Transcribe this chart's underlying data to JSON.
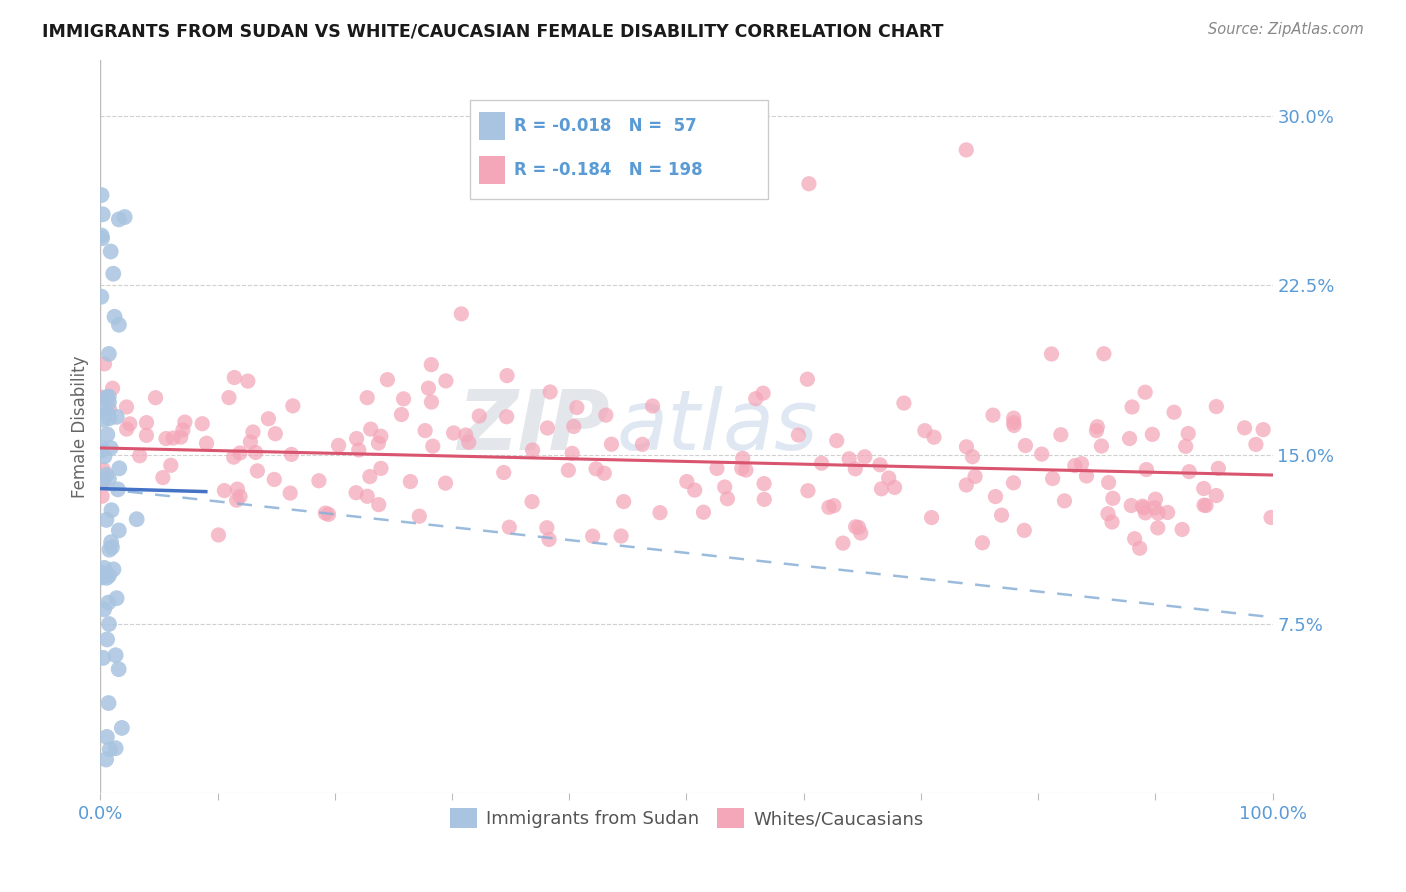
{
  "title": "IMMIGRANTS FROM SUDAN VS WHITE/CAUCASIAN FEMALE DISABILITY CORRELATION CHART",
  "source": "Source: ZipAtlas.com",
  "ylabel": "Female Disability",
  "xlim": [
    0,
    1.0
  ],
  "ylim": [
    0,
    0.325
  ],
  "yticks": [
    0.075,
    0.15,
    0.225,
    0.3
  ],
  "ytick_labels": [
    "7.5%",
    "15.0%",
    "22.5%",
    "30.0%"
  ],
  "xticks": [
    0.0,
    0.1,
    0.2,
    0.3,
    0.4,
    0.5,
    0.6,
    0.7,
    0.8,
    0.9,
    1.0
  ],
  "color_sudan": "#a8c4e0",
  "color_white": "#f4a7b9",
  "color_sudan_line": "#4472c4",
  "color_white_line": "#d9546e",
  "color_dashed": "#8ab0d8",
  "watermark_zip": "ZIP",
  "watermark_atlas": "atlas",
  "background_color": "#ffffff",
  "grid_color": "#d0d0d0",
  "title_color": "#1a1a1a",
  "axis_label_color": "#5b9bd5",
  "white_intercept": 0.153,
  "white_slope": -0.012,
  "sudan_solid_intercept": 0.135,
  "sudan_solid_slope": -0.015,
  "dashed_intercept": 0.135,
  "dashed_slope": -0.057
}
